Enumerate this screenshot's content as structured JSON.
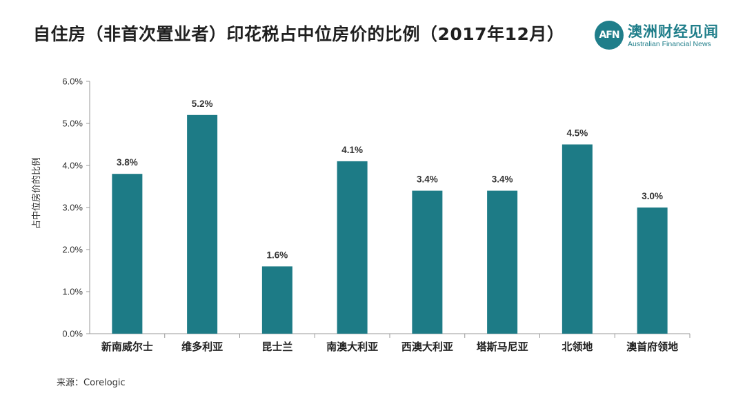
{
  "title": "自住房（非首次置业者）印花税占中位房价的比例（2017年12月）",
  "logo": {
    "mark": "AFN",
    "name_cn": "澳洲财经见闻",
    "name_en": "Australian Financial News",
    "color": "#1f7e8a"
  },
  "source": "来源：Corelogic",
  "chart_data": {
    "type": "bar",
    "title": "自住房（非首次置业者）印花税占中位房价的比例（2017年12月）",
    "ylabel": "占中位房价的比例",
    "xlabel": "",
    "categories": [
      "新南威尔士",
      "维多利亚",
      "昆士兰",
      "南澳大利亚",
      "西澳大利亚",
      "塔斯马尼亚",
      "北领地",
      "澳首府领地"
    ],
    "values": [
      3.8,
      5.2,
      1.6,
      4.1,
      3.4,
      3.4,
      4.5,
      3.0
    ],
    "value_labels": [
      "3.8%",
      "5.2%",
      "1.6%",
      "4.1%",
      "3.4%",
      "3.4%",
      "4.5%",
      "3.0%"
    ],
    "ylim": [
      0,
      6
    ],
    "yticks": [
      0,
      1,
      2,
      3,
      4,
      5,
      6
    ],
    "ytick_labels": [
      "0.0%",
      "1.0%",
      "2.0%",
      "3.0%",
      "4.0%",
      "5.0%",
      "6.0%"
    ],
    "bar_color": "#1d7b86",
    "grid": false,
    "legend": "none"
  }
}
